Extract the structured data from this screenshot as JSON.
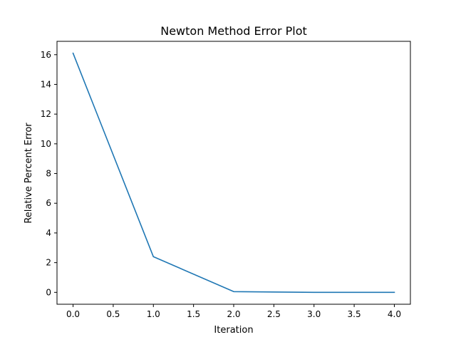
{
  "chart_data": {
    "type": "line",
    "title": "Newton Method Error Plot",
    "xlabel": "Iteration",
    "ylabel": "Relative Percent Error",
    "xlim": [
      -0.2,
      4.2
    ],
    "ylim": [
      -0.8,
      16.9
    ],
    "xticks": [
      0.0,
      0.5,
      1.0,
      1.5,
      2.0,
      2.5,
      3.0,
      3.5,
      4.0
    ],
    "xtick_labels": [
      "0.0",
      "0.5",
      "1.0",
      "1.5",
      "2.0",
      "2.5",
      "3.0",
      "3.5",
      "4.0"
    ],
    "yticks": [
      0,
      2,
      4,
      6,
      8,
      10,
      12,
      14,
      16
    ],
    "ytick_labels": [
      "0",
      "2",
      "4",
      "6",
      "8",
      "10",
      "12",
      "14",
      "16"
    ],
    "grid": false,
    "series": [
      {
        "color": "#1f77b4",
        "x": [
          0,
          1,
          2,
          3,
          4
        ],
        "y": [
          16.1,
          2.4,
          0.05,
          0.0,
          0.0
        ]
      }
    ]
  }
}
